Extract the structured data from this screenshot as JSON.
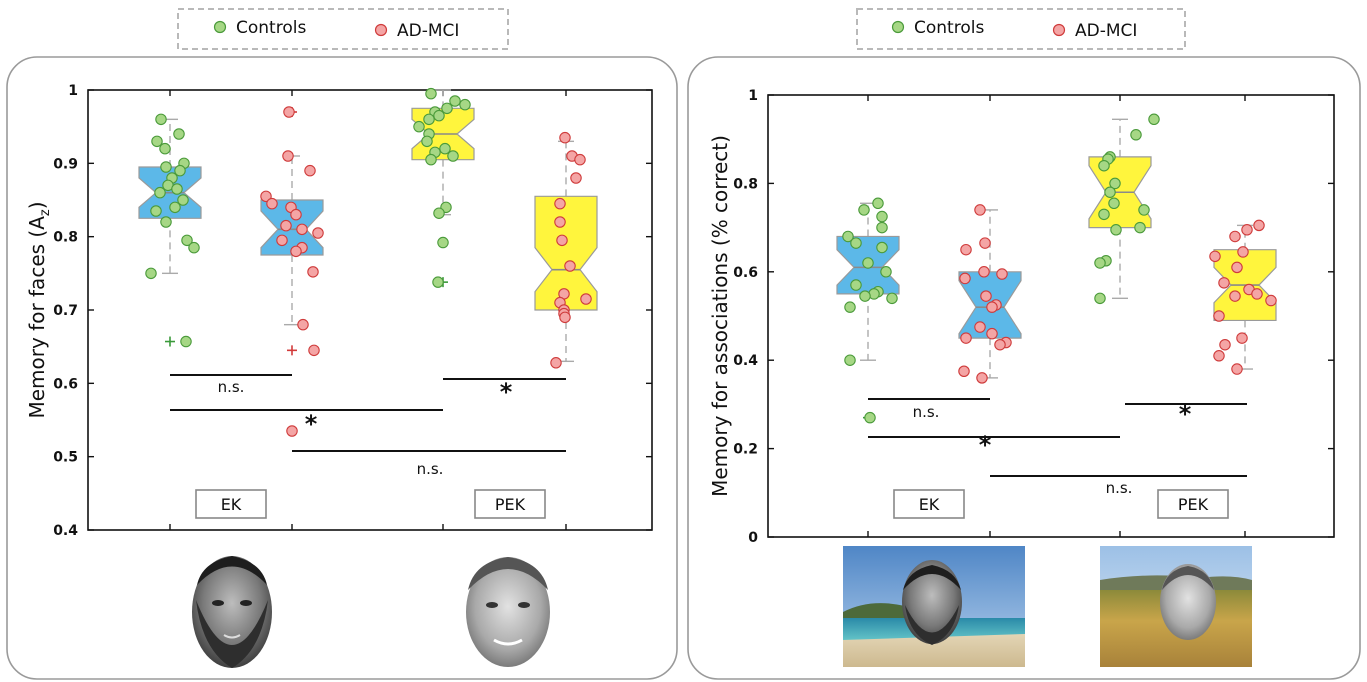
{
  "colors": {
    "controls_fill": "#a6d785",
    "controls_edge": "#4a9a3a",
    "admci_fill": "#f4a5a5",
    "admci_edge": "#cf3b3b",
    "box_blue": "#5cb8e8",
    "box_yellow": "#fff53d",
    "panel_border": "#999999"
  },
  "legend": {
    "controls": "Controls",
    "admci": "AD-MCI"
  },
  "chart_data": [
    {
      "type": "box",
      "title": "",
      "xlabel": "",
      "ylabel_main": "Memory for faces (A",
      "ylabel_sub": "z",
      "ylabel_close": ")",
      "ylim": [
        0.4,
        1
      ],
      "yticks": [
        "0.4",
        "0.5",
        "0.6",
        "0.7",
        "0.8",
        "0.9",
        "1"
      ],
      "ytick_values": [
        0.4,
        0.5,
        0.6,
        0.7,
        0.8,
        0.9,
        1.0
      ],
      "groups": [
        "Controls",
        "AD-MCI",
        "Controls",
        "AD-MCI"
      ],
      "category_labels": [
        "EK",
        "PEK"
      ],
      "face_icons": [
        "bearded-man-face-icon",
        "obama-face-icon"
      ],
      "boxes": [
        {
          "group": "Controls",
          "condition": "EK",
          "color": "blue",
          "q1": 0.825,
          "median": 0.86,
          "q3": 0.895,
          "whisker_low": 0.75,
          "whisker_high": 0.96,
          "notch": 0.02,
          "outliers": [
            0.657
          ],
          "points": [
            0.96,
            0.94,
            0.93,
            0.92,
            0.9,
            0.895,
            0.89,
            0.88,
            0.87,
            0.865,
            0.86,
            0.85,
            0.84,
            0.835,
            0.82,
            0.795,
            0.785,
            0.75,
            0.657
          ]
        },
        {
          "group": "AD-MCI",
          "condition": "EK",
          "color": "blue",
          "q1": 0.775,
          "median": 0.81,
          "q3": 0.85,
          "whisker_low": 0.68,
          "whisker_high": 0.91,
          "notch": 0.025,
          "outliers": [
            0.97,
            0.645,
            0.535
          ],
          "points": [
            0.97,
            0.91,
            0.89,
            0.855,
            0.845,
            0.84,
            0.83,
            0.815,
            0.81,
            0.805,
            0.795,
            0.785,
            0.78,
            0.752,
            0.68,
            0.645,
            0.535
          ]
        },
        {
          "group": "Controls",
          "condition": "PEK",
          "color": "yellow",
          "q1": 0.905,
          "median": 0.94,
          "q3": 0.975,
          "whisker_low": 0.83,
          "whisker_high": 1.0,
          "notch": 0.02,
          "outliers": [
            0.738
          ],
          "points": [
            0.995,
            0.985,
            0.98,
            0.975,
            0.97,
            0.965,
            0.96,
            0.95,
            0.94,
            0.93,
            0.92,
            0.915,
            0.91,
            0.905,
            0.84,
            0.832,
            0.792,
            0.738
          ]
        },
        {
          "group": "AD-MCI",
          "condition": "PEK",
          "color": "yellow",
          "q1": 0.7,
          "median": 0.755,
          "q3": 0.855,
          "whisker_low": 0.63,
          "whisker_high": 0.93,
          "notch": 0.03,
          "outliers": [],
          "points": [
            0.935,
            0.91,
            0.905,
            0.88,
            0.845,
            0.82,
            0.795,
            0.76,
            0.722,
            0.715,
            0.71,
            0.7,
            0.695,
            0.69,
            0.628
          ]
        }
      ],
      "comparisons": [
        {
          "label": "n.s."
        },
        {
          "label": "*"
        },
        {
          "label": "*"
        },
        {
          "label": "n.s."
        }
      ]
    },
    {
      "type": "box",
      "title": "",
      "xlabel": "",
      "ylabel_main": "Memory for associations (% correct)",
      "ylim": [
        0,
        1
      ],
      "yticks": [
        "0",
        "0.2",
        "0.4",
        "0.6",
        "0.8",
        "1"
      ],
      "ytick_values": [
        0,
        0.2,
        0.4,
        0.6,
        0.8,
        1.0
      ],
      "groups": [
        "Controls",
        "AD-MCI",
        "Controls",
        "AD-MCI"
      ],
      "category_labels": [
        "EK",
        "PEK"
      ],
      "face_icons": [
        "beach-scene-face-icon",
        "field-scene-face-icon"
      ],
      "boxes": [
        {
          "group": "Controls",
          "condition": "EK",
          "color": "blue",
          "q1": 0.55,
          "median": 0.61,
          "q3": 0.68,
          "whisker_low": 0.4,
          "whisker_high": 0.755,
          "notch": 0.04,
          "outliers": [
            0.27
          ],
          "points": [
            0.755,
            0.74,
            0.725,
            0.7,
            0.68,
            0.665,
            0.655,
            0.62,
            0.6,
            0.57,
            0.555,
            0.55,
            0.545,
            0.54,
            0.52,
            0.4,
            0.27
          ]
        },
        {
          "group": "AD-MCI",
          "condition": "EK",
          "color": "blue",
          "q1": 0.45,
          "median": 0.52,
          "q3": 0.6,
          "whisker_low": 0.36,
          "whisker_high": 0.74,
          "notch": 0.06,
          "outliers": [],
          "points": [
            0.74,
            0.665,
            0.65,
            0.6,
            0.595,
            0.585,
            0.545,
            0.525,
            0.52,
            0.475,
            0.46,
            0.45,
            0.44,
            0.435,
            0.375,
            0.36
          ]
        },
        {
          "group": "Controls",
          "condition": "PEK",
          "color": "yellow",
          "q1": 0.7,
          "median": 0.78,
          "q3": 0.86,
          "whisker_low": 0.54,
          "whisker_high": 0.945,
          "notch": 0.06,
          "outliers": [],
          "points": [
            0.945,
            0.91,
            0.86,
            0.855,
            0.84,
            0.8,
            0.78,
            0.755,
            0.74,
            0.73,
            0.7,
            0.695,
            0.625,
            0.62,
            0.54
          ]
        },
        {
          "group": "AD-MCI",
          "condition": "PEK",
          "color": "yellow",
          "q1": 0.49,
          "median": 0.57,
          "q3": 0.65,
          "whisker_low": 0.38,
          "whisker_high": 0.705,
          "notch": 0.04,
          "outliers": [],
          "points": [
            0.705,
            0.695,
            0.68,
            0.645,
            0.635,
            0.61,
            0.575,
            0.56,
            0.55,
            0.545,
            0.535,
            0.5,
            0.45,
            0.435,
            0.41,
            0.38
          ]
        }
      ],
      "comparisons": [
        {
          "label": "n.s."
        },
        {
          "label": "*"
        },
        {
          "label": "*"
        },
        {
          "label": "n.s."
        }
      ]
    }
  ]
}
